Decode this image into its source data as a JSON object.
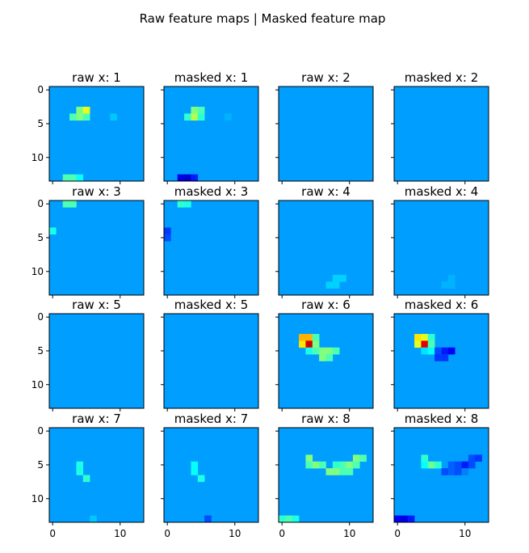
{
  "figure": {
    "title": "Raw feature maps | Masked feature map"
  },
  "chart_data": {
    "type": "heatmap",
    "title": "Raw feature maps | Masked feature map",
    "grid_size": 14,
    "background_value": 0.28,
    "colormap": "jet",
    "layout": {
      "rows": 4,
      "cols": 4
    },
    "x_ticks": [
      0,
      10
    ],
    "y_ticks": [
      0,
      5,
      10
    ],
    "panels": [
      {
        "title": "raw x: 1",
        "cells": [
          [
            3,
            4,
            0.5
          ],
          [
            3,
            5,
            0.6
          ],
          [
            4,
            3,
            0.45
          ],
          [
            4,
            4,
            0.5
          ],
          [
            4,
            5,
            0.45
          ],
          [
            4,
            9,
            0.32
          ],
          [
            13,
            2,
            0.45
          ],
          [
            13,
            3,
            0.45
          ],
          [
            13,
            4,
            0.38
          ]
        ]
      },
      {
        "title": "masked x: 1",
        "cells": [
          [
            3,
            4,
            0.5
          ],
          [
            3,
            5,
            0.45
          ],
          [
            4,
            3,
            0.42
          ],
          [
            4,
            4,
            0.55
          ],
          [
            4,
            5,
            0.42
          ],
          [
            4,
            9,
            0.3
          ],
          [
            13,
            2,
            0.1
          ],
          [
            13,
            3,
            0.08
          ],
          [
            13,
            4,
            0.15
          ]
        ]
      },
      {
        "title": "raw x: 2",
        "cells": []
      },
      {
        "title": "masked x: 2",
        "cells": []
      },
      {
        "title": "raw x: 3",
        "cells": [
          [
            0,
            2,
            0.45
          ],
          [
            0,
            3,
            0.45
          ],
          [
            4,
            0,
            0.4
          ]
        ]
      },
      {
        "title": "masked x: 3",
        "cells": [
          [
            0,
            2,
            0.42
          ],
          [
            0,
            3,
            0.4
          ],
          [
            4,
            0,
            0.18
          ],
          [
            5,
            0,
            0.2
          ]
        ]
      },
      {
        "title": "raw x: 4",
        "cells": [
          [
            11,
            8,
            0.33
          ],
          [
            11,
            9,
            0.33
          ],
          [
            12,
            7,
            0.33
          ],
          [
            12,
            8,
            0.33
          ]
        ]
      },
      {
        "title": "masked x: 4",
        "cells": [
          [
            11,
            8,
            0.3
          ],
          [
            12,
            7,
            0.3
          ],
          [
            12,
            8,
            0.3
          ]
        ]
      },
      {
        "title": "raw x: 5",
        "cells": []
      },
      {
        "title": "masked x: 5",
        "cells": []
      },
      {
        "title": "raw x: 6",
        "cells": [
          [
            3,
            3,
            0.7
          ],
          [
            3,
            4,
            0.7
          ],
          [
            3,
            5,
            0.45
          ],
          [
            4,
            3,
            0.65
          ],
          [
            4,
            4,
            0.92
          ],
          [
            4,
            5,
            0.5
          ],
          [
            5,
            4,
            0.4
          ],
          [
            5,
            5,
            0.45
          ],
          [
            5,
            6,
            0.5
          ],
          [
            5,
            7,
            0.5
          ],
          [
            5,
            8,
            0.45
          ],
          [
            6,
            6,
            0.5
          ],
          [
            6,
            7,
            0.45
          ]
        ]
      },
      {
        "title": "masked x: 6",
        "cells": [
          [
            3,
            3,
            0.65
          ],
          [
            3,
            4,
            0.6
          ],
          [
            3,
            5,
            0.42
          ],
          [
            4,
            3,
            0.6
          ],
          [
            4,
            4,
            0.9
          ],
          [
            4,
            5,
            0.45
          ],
          [
            5,
            4,
            0.35
          ],
          [
            5,
            5,
            0.38
          ],
          [
            5,
            6,
            0.2
          ],
          [
            5,
            7,
            0.15
          ],
          [
            5,
            8,
            0.12
          ],
          [
            6,
            6,
            0.18
          ],
          [
            6,
            7,
            0.18
          ]
        ]
      },
      {
        "title": "raw x: 7",
        "cells": [
          [
            5,
            4,
            0.4
          ],
          [
            6,
            4,
            0.4
          ],
          [
            7,
            5,
            0.42
          ],
          [
            13,
            6,
            0.32
          ]
        ]
      },
      {
        "title": "masked x: 7",
        "cells": [
          [
            5,
            4,
            0.38
          ],
          [
            6,
            4,
            0.38
          ],
          [
            7,
            5,
            0.4
          ],
          [
            13,
            6,
            0.2
          ]
        ]
      },
      {
        "title": "raw x: 8",
        "cells": [
          [
            4,
            4,
            0.5
          ],
          [
            4,
            11,
            0.5
          ],
          [
            4,
            12,
            0.45
          ],
          [
            5,
            4,
            0.45
          ],
          [
            5,
            5,
            0.5
          ],
          [
            5,
            6,
            0.45
          ],
          [
            5,
            8,
            0.42
          ],
          [
            5,
            9,
            0.45
          ],
          [
            5,
            10,
            0.5
          ],
          [
            5,
            11,
            0.45
          ],
          [
            6,
            7,
            0.5
          ],
          [
            6,
            8,
            0.5
          ],
          [
            6,
            9,
            0.45
          ],
          [
            6,
            10,
            0.45
          ],
          [
            13,
            0,
            0.42
          ],
          [
            13,
            1,
            0.45
          ],
          [
            13,
            2,
            0.4
          ]
        ]
      },
      {
        "title": "masked x: 8",
        "cells": [
          [
            4,
            4,
            0.42
          ],
          [
            4,
            11,
            0.2
          ],
          [
            4,
            12,
            0.18
          ],
          [
            5,
            4,
            0.38
          ],
          [
            5,
            5,
            0.48
          ],
          [
            5,
            6,
            0.42
          ],
          [
            5,
            8,
            0.22
          ],
          [
            5,
            9,
            0.2
          ],
          [
            5,
            10,
            0.15
          ],
          [
            5,
            11,
            0.2
          ],
          [
            6,
            7,
            0.2
          ],
          [
            6,
            8,
            0.22
          ],
          [
            6,
            9,
            0.2
          ],
          [
            6,
            10,
            0.25
          ],
          [
            13,
            0,
            0.12
          ],
          [
            13,
            1,
            0.1
          ],
          [
            13,
            2,
            0.15
          ]
        ]
      }
    ]
  }
}
